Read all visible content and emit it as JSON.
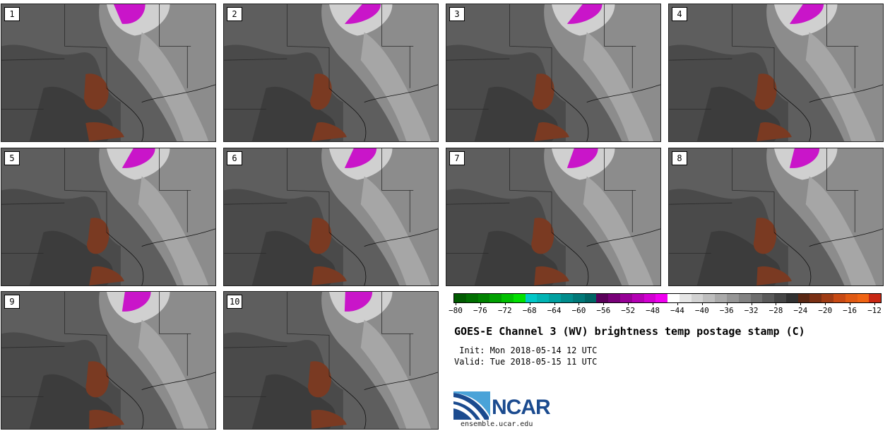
{
  "panels": [
    {
      "label": "1"
    },
    {
      "label": "2"
    },
    {
      "label": "3"
    },
    {
      "label": "4"
    },
    {
      "label": "5"
    },
    {
      "label": "6"
    },
    {
      "label": "7"
    },
    {
      "label": "8"
    },
    {
      "label": "9"
    },
    {
      "label": "10"
    }
  ],
  "colorbar": {
    "colors": [
      "#005a00",
      "#006e00",
      "#008200",
      "#00a000",
      "#00c000",
      "#00e000",
      "#00c8c8",
      "#00b4b4",
      "#00a0a0",
      "#008c8c",
      "#007878",
      "#006464",
      "#5a005a",
      "#780078",
      "#960096",
      "#b400b4",
      "#d200d2",
      "#f000f0",
      "#ffffff",
      "#e6e6e6",
      "#d2d2d2",
      "#bebebe",
      "#aaaaaa",
      "#969696",
      "#828282",
      "#6e6e6e",
      "#5a5a5a",
      "#464646",
      "#323232",
      "#5a2814",
      "#7a3014",
      "#a03c14",
      "#c84a14",
      "#e05a14",
      "#f06414",
      "#c82814"
    ],
    "ticks": [
      "−80",
      "−76",
      "−72",
      "−68",
      "−64",
      "−60",
      "−56",
      "−52",
      "−48",
      "−44",
      "−40",
      "−36",
      "−32",
      "−28",
      "−24",
      "−20",
      "−16",
      "−12"
    ]
  },
  "title": "GOES-E Channel 3 (WV) brightness temp postage stamp (C)",
  "init": " Init: Mon 2018-05-14 12 UTC",
  "valid": "Valid: Tue 2018-05-15 11 UTC",
  "logo": {
    "word": "NCAR",
    "url": "ensemble.ucar.edu"
  }
}
